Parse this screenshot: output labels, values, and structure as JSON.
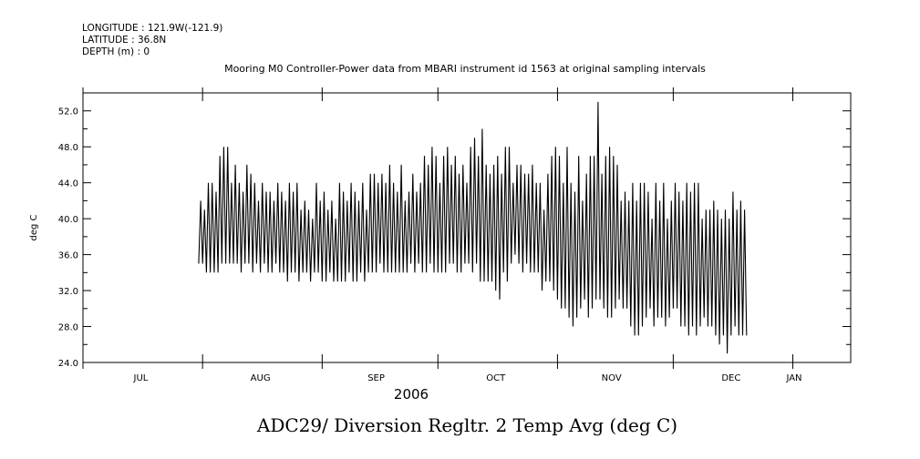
{
  "header": {
    "longitude": "LONGITUDE : 121.9W(-121.9)",
    "latitude": "LATITUDE : 36.8N",
    "depth": "DEPTH (m) : 0"
  },
  "chart_title": "Mooring M0 Controller-Power data from MBARI instrument id 1563 at original sampling intervals",
  "bottom_title": "ADC29/ Diversion Regltr. 2 Temp Avg (deg C)",
  "chart_data": {
    "type": "line",
    "title": "Mooring M0 Controller-Power data from MBARI instrument id 1563 at original sampling intervals",
    "xlabel": "2006",
    "ylabel": "deg C",
    "ylim": [
      24.0,
      54.0
    ],
    "yticks": [
      "24.0",
      "28.0",
      "32.0",
      "36.0",
      "40.0",
      "44.0",
      "48.0",
      "52.0"
    ],
    "xlim": [
      "2006-07-01",
      "2007-01-16"
    ],
    "xticks": [
      "JUL",
      "AUG",
      "SEP",
      "OCT",
      "NOV",
      "DEC",
      "JAN"
    ],
    "grid": false,
    "series": [
      {
        "values_note": "daily cycle of highs/lows (deg C) starting 2006-07-31, one high and one low per day",
        "start": "2006-07-31",
        "daily_high": [
          42,
          41,
          44,
          44,
          43,
          47,
          48,
          48,
          44,
          46,
          44,
          43,
          46,
          45,
          44,
          42,
          44,
          43,
          43,
          42,
          44,
          43,
          42,
          44,
          43,
          44,
          41,
          42,
          41,
          40,
          44,
          42,
          43,
          41,
          42,
          40,
          44,
          43,
          42,
          44,
          43,
          42,
          44,
          41,
          45,
          45,
          44,
          45,
          44,
          46,
          44,
          43,
          46,
          42,
          43,
          45,
          43,
          44,
          47,
          46,
          48,
          47,
          44,
          47,
          48,
          46,
          47,
          45,
          46,
          44,
          48,
          49,
          47,
          50,
          46,
          45,
          46,
          47,
          45,
          48,
          48,
          44,
          46,
          46,
          45,
          45,
          46,
          44,
          44,
          41,
          45,
          47,
          48,
          47,
          44,
          48,
          44,
          43,
          47,
          42,
          45,
          47,
          47,
          53,
          45,
          47,
          48,
          47,
          46,
          42,
          43,
          42,
          44,
          42,
          44,
          44,
          43,
          40,
          44,
          42,
          44,
          40,
          42,
          44,
          43,
          42,
          44,
          43,
          44,
          44,
          40,
          41,
          41,
          42,
          41,
          40,
          41,
          40,
          43,
          41,
          42,
          41
        ],
        "daily_low": [
          35,
          35,
          34,
          34,
          34,
          34,
          35,
          35,
          35,
          35,
          35,
          34,
          35,
          35,
          34,
          35,
          34,
          35,
          34,
          34,
          35,
          34,
          34,
          33,
          34,
          34,
          33,
          34,
          34,
          33,
          34,
          34,
          33,
          33,
          34,
          33,
          33,
          33,
          33,
          34,
          33,
          33,
          34,
          33,
          34,
          34,
          34,
          35,
          34,
          34,
          34,
          34,
          34,
          34,
          34,
          35,
          34,
          35,
          34,
          34,
          35,
          34,
          34,
          34,
          34,
          35,
          35,
          34,
          34,
          35,
          35,
          34,
          35,
          33,
          33,
          33,
          33,
          32,
          31,
          34,
          33,
          35,
          36,
          35,
          34,
          35,
          34,
          34,
          34,
          32,
          33,
          33,
          32,
          31,
          30,
          30,
          29,
          28,
          29,
          30,
          31,
          29,
          30,
          31,
          31,
          30,
          29,
          29,
          30,
          31,
          30,
          30,
          28,
          27,
          27,
          28,
          29,
          30,
          28,
          29,
          29,
          28,
          29,
          30,
          30,
          28,
          28,
          27,
          28,
          27,
          28,
          29,
          28,
          28,
          27,
          26,
          27,
          25,
          27,
          28,
          27,
          27
        ]
      }
    ]
  }
}
